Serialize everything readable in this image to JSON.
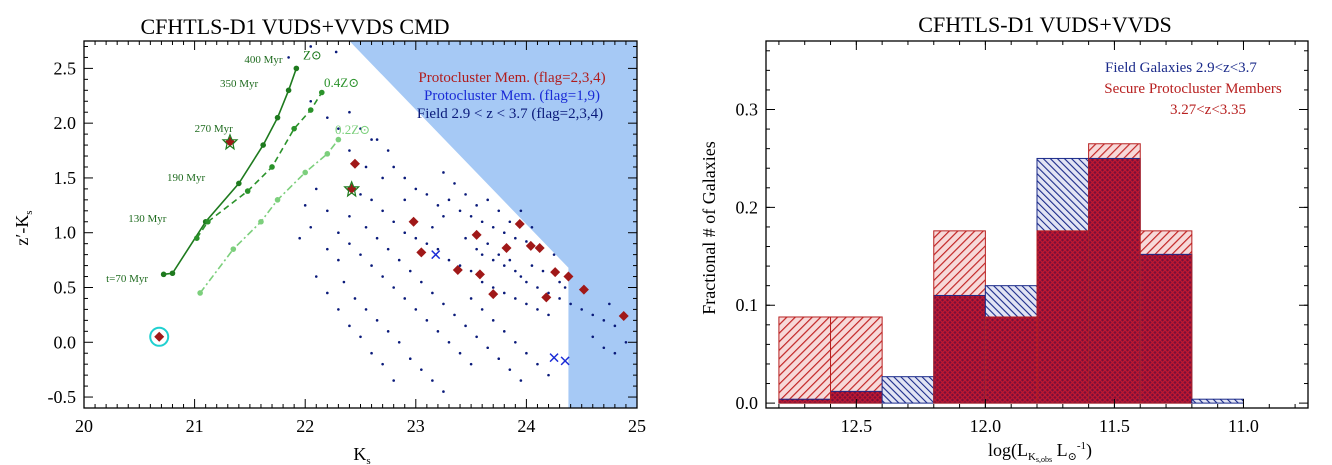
{
  "chart_data": [
    {
      "type": "scatter",
      "title": "CFHTLS-D1 VUDS+VVDS CMD",
      "xlabel": "K",
      "xlabel_sub": "s",
      "ylabel": "z′-K",
      "ylabel_sub": "s",
      "xlim": [
        20,
        25
      ],
      "ylim": [
        -0.6,
        2.75
      ],
      "xticks": [
        "20",
        "21",
        "22",
        "23",
        "24",
        "25"
      ],
      "yticks": [
        "-0.5",
        "0.0",
        "0.5",
        "1.0",
        "1.5",
        "2.0",
        "2.5"
      ],
      "shaded_region": "color-magnitude selection limit (top-right)",
      "legend": [
        {
          "label": "Protocluster Mem. (flag=2,3,4)",
          "color": "#b01c1c"
        },
        {
          "label": "Protocluster Mem. (flag=1,9)",
          "color": "#1a2bd6"
        },
        {
          "label": "Field 2.9 < z < 3.7  (flag=2,3,4)",
          "color": "#0a1a7a"
        }
      ],
      "tracks": [
        {
          "label": "Z⊙",
          "style": "solid",
          "color": "#1e7a1e",
          "points": [
            [
              20.72,
              0.62
            ],
            [
              20.8,
              0.63
            ],
            [
              21.1,
              1.1
            ],
            [
              21.4,
              1.45
            ],
            [
              21.62,
              1.8
            ],
            [
              21.75,
              2.05
            ],
            [
              21.85,
              2.3
            ],
            [
              21.92,
              2.5
            ]
          ]
        },
        {
          "label": "0.4Z⊙",
          "style": "dashed",
          "color": "#2a922a",
          "points": [
            [
              21.02,
              0.95
            ],
            [
              21.12,
              1.1
            ],
            [
              21.48,
              1.38
            ],
            [
              21.7,
              1.6
            ],
            [
              21.9,
              1.95
            ],
            [
              22.05,
              2.12
            ],
            [
              22.15,
              2.28
            ]
          ]
        },
        {
          "label": "0.2Z⊙",
          "style": "dashdot",
          "color": "#7ccf7c",
          "points": [
            [
              21.05,
              0.45
            ],
            [
              21.35,
              0.85
            ],
            [
              21.6,
              1.1
            ],
            [
              21.75,
              1.3
            ],
            [
              22.0,
              1.55
            ],
            [
              22.2,
              1.72
            ],
            [
              22.3,
              1.85
            ]
          ]
        }
      ],
      "track_ages": [
        {
          "label": "400 Myr",
          "x": 21.45,
          "y": 2.55
        },
        {
          "label": "350 Myr",
          "x": 21.23,
          "y": 2.33
        },
        {
          "label": "270 Myr",
          "x": 21.0,
          "y": 1.92
        },
        {
          "label": "190 Myr",
          "x": 20.75,
          "y": 1.47
        },
        {
          "label": "130 Myr",
          "x": 20.4,
          "y": 1.1
        },
        {
          "label": "t=70 Myr",
          "x": 20.2,
          "y": 0.55
        }
      ],
      "series": [
        {
          "name": "Protocluster Mem. (flag=2,3,4)",
          "marker": "diamond",
          "color": "#a01818",
          "points": [
            [
              20.68,
              0.05
            ],
            [
              21.32,
              1.83
            ],
            [
              22.42,
              1.4
            ],
            [
              22.45,
              1.63
            ],
            [
              22.98,
              1.1
            ],
            [
              23.05,
              0.82
            ],
            [
              23.38,
              0.66
            ],
            [
              23.55,
              0.98
            ],
            [
              23.58,
              0.62
            ],
            [
              23.7,
              0.44
            ],
            [
              23.82,
              0.86
            ],
            [
              23.94,
              1.08
            ],
            [
              24.04,
              0.88
            ],
            [
              24.12,
              0.86
            ],
            [
              24.18,
              0.41
            ],
            [
              24.26,
              0.64
            ],
            [
              24.38,
              0.6
            ],
            [
              24.52,
              0.48
            ],
            [
              24.88,
              0.24
            ]
          ]
        },
        {
          "name": "Protocluster Mem. (flag=1,9)",
          "marker": "x",
          "color": "#1a2bd6",
          "points": [
            [
              23.18,
              0.8
            ],
            [
              24.25,
              -0.14
            ],
            [
              24.35,
              -0.17
            ]
          ]
        },
        {
          "name": "Field 2.9 < z < 3.7  (flag=2,3,4)",
          "marker": "dot",
          "color": "#0a1a7a",
          "points": [
            [
              22.05,
              2.7
            ],
            [
              22.28,
              2.65
            ],
            [
              21.85,
              2.6
            ],
            [
              22.05,
              2.2
            ],
            [
              22.2,
              2.05
            ],
            [
              22.3,
              1.95
            ],
            [
              22.4,
              2.1
            ],
            [
              22.5,
              1.95
            ],
            [
              22.6,
              1.85
            ],
            [
              22.4,
              1.75
            ],
            [
              22.55,
              1.6
            ],
            [
              22.7,
              1.5
            ],
            [
              22.8,
              1.6
            ],
            [
              22.9,
              1.5
            ],
            [
              23.0,
              1.4
            ],
            [
              22.9,
              1.3
            ],
            [
              23.1,
              1.35
            ],
            [
              23.2,
              1.25
            ],
            [
              23.3,
              1.3
            ],
            [
              23.4,
              1.2
            ],
            [
              23.5,
              1.15
            ],
            [
              23.6,
              1.1
            ],
            [
              23.7,
              1.05
            ],
            [
              23.8,
              1.0
            ],
            [
              23.9,
              0.95
            ],
            [
              24.0,
              0.92
            ],
            [
              22.5,
              1.35
            ],
            [
              22.6,
              1.3
            ],
            [
              22.7,
              1.2
            ],
            [
              22.8,
              1.1
            ],
            [
              22.9,
              1.0
            ],
            [
              23.0,
              0.95
            ],
            [
              23.1,
              0.9
            ],
            [
              23.2,
              0.85
            ],
            [
              23.3,
              0.75
            ],
            [
              23.4,
              0.7
            ],
            [
              23.5,
              0.65
            ],
            [
              23.6,
              0.55
            ],
            [
              23.7,
              0.5
            ],
            [
              23.8,
              0.45
            ],
            [
              23.9,
              0.4
            ],
            [
              24.0,
              0.35
            ],
            [
              24.1,
              0.3
            ],
            [
              24.2,
              0.25
            ],
            [
              22.4,
              1.15
            ],
            [
              22.3,
              1.0
            ],
            [
              22.4,
              0.9
            ],
            [
              22.5,
              0.8
            ],
            [
              22.6,
              0.7
            ],
            [
              22.7,
              0.6
            ],
            [
              22.8,
              0.5
            ],
            [
              22.9,
              0.4
            ],
            [
              23.0,
              0.3
            ],
            [
              23.1,
              0.2
            ],
            [
              23.2,
              0.1
            ],
            [
              23.3,
              0.0
            ],
            [
              23.4,
              -0.1
            ],
            [
              23.5,
              -0.2
            ],
            [
              22.2,
              0.85
            ],
            [
              22.3,
              0.75
            ],
            [
              22.1,
              0.6
            ],
            [
              22.2,
              0.45
            ],
            [
              22.3,
              0.3
            ],
            [
              22.4,
              0.15
            ],
            [
              22.5,
              0.05
            ],
            [
              22.6,
              -0.1
            ],
            [
              22.7,
              -0.2
            ],
            [
              22.8,
              -0.35
            ],
            [
              23.6,
              0.3
            ],
            [
              23.7,
              0.2
            ],
            [
              23.8,
              0.1
            ],
            [
              23.9,
              0.0
            ],
            [
              24.0,
              -0.1
            ],
            [
              24.1,
              -0.2
            ],
            [
              24.2,
              -0.3
            ],
            [
              23.5,
              0.4
            ],
            [
              23.6,
              0.8
            ],
            [
              23.7,
              0.75
            ],
            [
              23.8,
              0.7
            ],
            [
              23.9,
              0.65
            ],
            [
              24.0,
              0.55
            ],
            [
              24.1,
              0.5
            ],
            [
              24.2,
              0.45
            ],
            [
              24.3,
              0.4
            ],
            [
              24.4,
              0.35
            ],
            [
              24.5,
              0.3
            ],
            [
              24.6,
              0.25
            ],
            [
              24.7,
              0.2
            ],
            [
              24.8,
              0.15
            ],
            [
              24.6,
              0.05
            ],
            [
              24.7,
              -0.05
            ],
            [
              24.8,
              -0.1
            ],
            [
              24.9,
              0.0
            ],
            [
              24.75,
              0.35
            ],
            [
              22.0,
              1.25
            ],
            [
              22.1,
              1.4
            ],
            [
              22.2,
              1.2
            ],
            [
              21.95,
              0.95
            ],
            [
              22.05,
              1.05
            ],
            [
              22.65,
              1.85
            ],
            [
              22.75,
              1.75
            ],
            [
              23.25,
              1.55
            ],
            [
              23.45,
              1.35
            ],
            [
              23.35,
              1.45
            ],
            [
              23.55,
              1.25
            ],
            [
              23.65,
              1.3
            ],
            [
              23.75,
              1.2
            ],
            [
              23.85,
              1.1
            ],
            [
              23.95,
              1.2
            ],
            [
              24.05,
              1.05
            ],
            [
              23.15,
              1.05
            ],
            [
              23.25,
              1.15
            ],
            [
              23.45,
              0.95
            ],
            [
              23.55,
              0.85
            ],
            [
              23.65,
              0.9
            ],
            [
              23.75,
              0.8
            ],
            [
              23.85,
              0.75
            ],
            [
              23.95,
              0.6
            ],
            [
              24.05,
              0.7
            ],
            [
              24.15,
              0.65
            ],
            [
              24.25,
              0.8
            ],
            [
              24.3,
              0.55
            ],
            [
              24.35,
              0.5
            ],
            [
              22.55,
              1.05
            ],
            [
              22.65,
              0.95
            ],
            [
              22.75,
              0.85
            ],
            [
              22.85,
              0.75
            ],
            [
              22.95,
              0.65
            ],
            [
              23.05,
              0.55
            ],
            [
              23.15,
              0.45
            ],
            [
              23.25,
              0.35
            ],
            [
              23.35,
              0.25
            ],
            [
              23.45,
              0.15
            ],
            [
              23.55,
              0.05
            ],
            [
              23.65,
              -0.05
            ],
            [
              23.75,
              -0.15
            ],
            [
              23.85,
              -0.25
            ],
            [
              23.95,
              -0.35
            ],
            [
              22.35,
              0.55
            ],
            [
              22.45,
              0.4
            ],
            [
              22.55,
              0.3
            ],
            [
              22.65,
              0.2
            ],
            [
              22.75,
              0.1
            ],
            [
              22.85,
              0.0
            ],
            [
              22.95,
              -0.15
            ],
            [
              23.05,
              -0.25
            ],
            [
              23.15,
              -0.35
            ],
            [
              23.25,
              -0.45
            ]
          ]
        }
      ]
    },
    {
      "type": "bar",
      "title": "CFHTLS-D1 VUDS+VVDS",
      "xlabel": "log(L",
      "xlabel_sub": "K",
      "xlabel_subsub": "s,obs",
      "xlabel_mid": " L",
      "xlabel_sun_sub": "⊙",
      "xlabel_sup": "-1",
      "xlabel_end": ")",
      "ylabel": "Fractional # of Galaxies",
      "xlim": [
        12.85,
        10.75
      ],
      "ylim": [
        -0.005,
        0.37
      ],
      "xticks": [
        "12.5",
        "12.0",
        "11.5",
        "11.0"
      ],
      "yticks": [
        "0.0",
        "0.1",
        "0.2",
        "0.3"
      ],
      "bin_edges": [
        12.8,
        12.6,
        12.4,
        12.2,
        12.0,
        11.8,
        11.6,
        11.4,
        11.2,
        11.0
      ],
      "series": [
        {
          "name": "Field Galaxies 2.9<z<3.7",
          "color": "#1a2a8a",
          "values": [
            0.004,
            0.012,
            0.027,
            0.11,
            0.12,
            0.25,
            0.25,
            0.152,
            0.004
          ]
        },
        {
          "name": "Secure Protocluster Members",
          "color": "#b82020",
          "values": [
            0.088,
            0.088,
            0.0,
            0.176,
            0.088,
            0.176,
            0.265,
            0.176,
            0.0
          ]
        }
      ],
      "legend": [
        {
          "label": "Field Galaxies 2.9<z<3.7",
          "color": "#1a2a8a"
        },
        {
          "label": "Secure Protocluster Members",
          "color": "#b82020"
        },
        {
          "label": "3.27<z<3.35",
          "color": "#b82020"
        }
      ]
    }
  ]
}
